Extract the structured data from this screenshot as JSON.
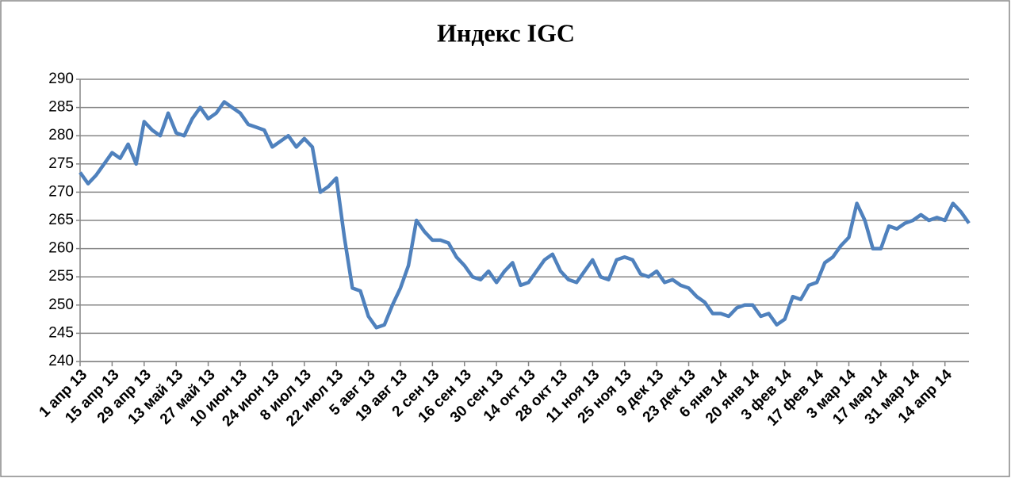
{
  "chart_data": {
    "type": "line",
    "title": "Индекс IGC",
    "categories": [
      "1 апр 13",
      null,
      null,
      null,
      "15 апр 13",
      null,
      null,
      null,
      "29 апр 13",
      null,
      null,
      null,
      "13 май 13",
      null,
      null,
      null,
      "27 май 13",
      null,
      null,
      null,
      "10 июн 13",
      null,
      null,
      null,
      "24 июн 13",
      null,
      null,
      null,
      "8 июл 13",
      null,
      null,
      null,
      "22 июл 13",
      null,
      null,
      null,
      "5 авг 13",
      null,
      null,
      null,
      "19 авг 13",
      null,
      null,
      null,
      "2 сен 13",
      null,
      null,
      null,
      "16 сен 13",
      null,
      null,
      null,
      "30 сен 13",
      null,
      null,
      null,
      "14 окт 13",
      null,
      null,
      null,
      "28 окт 13",
      null,
      null,
      null,
      "11 ноя 13",
      null,
      null,
      null,
      "25 ноя 13",
      null,
      null,
      null,
      "9 дек 13",
      null,
      null,
      null,
      "23 дек 13",
      null,
      null,
      null,
      "6 янв 14",
      null,
      null,
      null,
      "20 янв 14",
      null,
      null,
      null,
      "3 фев 14",
      null,
      null,
      null,
      "17 фев 14",
      null,
      null,
      null,
      "3 мар 14",
      null,
      null,
      null,
      "17 мар 14",
      null,
      null,
      null,
      "31 мар 14",
      null,
      null,
      null,
      "14 апр 14",
      null,
      null,
      null
    ],
    "series": [
      {
        "name": "Индекс IGC",
        "color": "#4f81bd",
        "values": [
          273.5,
          271.5,
          273,
          275,
          277,
          276,
          278.5,
          275,
          282.5,
          281,
          280,
          284,
          280.5,
          280,
          283,
          285,
          283,
          284,
          286,
          285,
          284,
          282,
          281.5,
          281,
          278,
          279,
          280,
          278,
          279.5,
          278,
          270,
          271,
          272.5,
          262,
          253,
          252.5,
          248,
          246,
          246.5,
          250,
          253,
          257,
          265,
          263,
          261.5,
          261.5,
          261,
          258.5,
          257,
          255,
          254.5,
          256,
          254,
          256,
          257.5,
          253.5,
          254,
          256,
          258,
          259,
          256,
          254.5,
          254,
          256,
          258,
          255,
          254.5,
          258,
          258.5,
          258,
          255.5,
          255,
          256,
          254,
          254.5,
          253.5,
          253,
          251.5,
          250.5,
          248.5,
          248.5,
          248,
          249.5,
          250,
          250,
          248,
          248.5,
          246.5,
          247.5,
          251.5,
          251,
          253.5,
          254,
          257.5,
          258.5,
          260.5,
          262,
          268,
          265,
          260,
          260,
          264,
          263.5,
          264.5,
          265,
          266,
          265,
          265.5,
          265,
          268,
          266.5,
          264.5
        ]
      }
    ],
    "ylim": [
      240,
      290
    ],
    "yticks": [
      240,
      245,
      250,
      255,
      260,
      265,
      270,
      275,
      280,
      285,
      290
    ],
    "grid": true
  }
}
